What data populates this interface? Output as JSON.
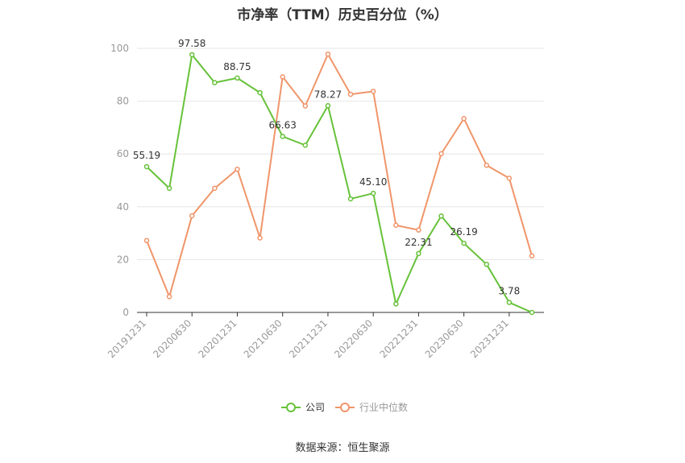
{
  "chart_data": {
    "type": "line",
    "title": "市净率（TTM）历史百分位（%）",
    "x": [
      "20191231",
      "20200331",
      "20200630",
      "20200930",
      "20201231",
      "20210331",
      "20210630",
      "20210930",
      "20211231",
      "20220331",
      "20220630",
      "20220930",
      "20221231",
      "20230331",
      "20230630",
      "20230930",
      "20231231",
      "20240331"
    ],
    "xtick_labels": [
      "20191231",
      "20200630",
      "20201231",
      "20210630",
      "20211231",
      "20220630",
      "20221231",
      "20230630",
      "20231231"
    ],
    "ylim": [
      0,
      100
    ],
    "yticks": [
      0,
      20,
      40,
      60,
      80,
      100
    ],
    "grid": true,
    "legend_position": "bottom",
    "series": [
      {
        "name": "公司",
        "color": "#67c23a",
        "values": [
          55.19,
          47.0,
          97.58,
          87.0,
          88.75,
          83.2,
          66.63,
          63.3,
          78.27,
          43.0,
          45.1,
          3.2,
          22.31,
          36.5,
          26.19,
          18.2,
          3.78,
          0.0
        ],
        "labels": [
          "55.19",
          null,
          "97.58",
          null,
          "88.75",
          null,
          "66.63",
          null,
          "78.27",
          null,
          "45.10",
          null,
          "22.31",
          null,
          "26.19",
          null,
          "3.78",
          null
        ]
      },
      {
        "name": "行业中位数",
        "color": "#f0956a",
        "values": [
          27.2,
          6.0,
          36.6,
          47.0,
          54.2,
          28.2,
          89.2,
          78.2,
          97.8,
          82.6,
          83.7,
          33.0,
          31.2,
          60.1,
          73.4,
          55.7,
          50.8,
          21.4
        ]
      }
    ]
  },
  "source": "数据来源：恒生聚源"
}
